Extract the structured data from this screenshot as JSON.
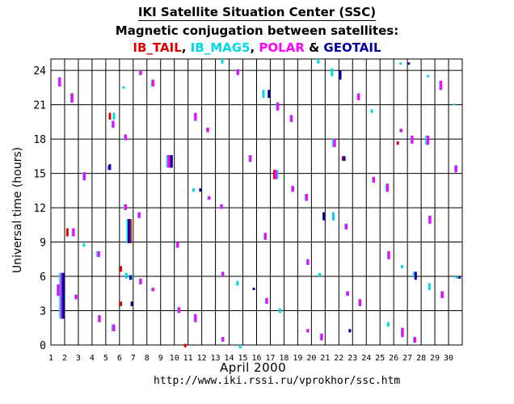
{
  "header": {
    "title": "IKI Satellite Situation Center (SSC)",
    "subtitle": "Magnetic conjugation between satellites:",
    "sats": [
      {
        "name": "IB_TAIL",
        "color": "#e00000",
        "sep": ", "
      },
      {
        "name": "IB_MAG5",
        "color": "#00d8e8",
        "sep": ", "
      },
      {
        "name": "POLAR",
        "color": "#ff00ff",
        "sep": " & "
      },
      {
        "name": "GEOTAIL",
        "color": "#0000a0",
        "sep": ""
      }
    ]
  },
  "footer": {
    "month": "April    2000",
    "url": "http://www.iki.rssi.ru/vprokhor/ssc.htm"
  },
  "chart_data": {
    "type": "scatter",
    "title": "Magnetic conjugation between satellites",
    "xlabel": "April 2000",
    "ylabel": "Universal time (hours)",
    "xlim": [
      1,
      31
    ],
    "ylim": [
      0,
      25
    ],
    "xticks": [
      "1",
      "2",
      "3",
      "4",
      "5",
      "6",
      "7",
      "8",
      "9",
      "10",
      "11",
      "12",
      "13",
      "14",
      "15",
      "16",
      "17",
      "18",
      "19",
      "20",
      "21",
      "22",
      "23",
      "24",
      "25",
      "26",
      "27",
      "28",
      "29",
      "30"
    ],
    "yticks": [
      "0",
      "3",
      "6",
      "9",
      "12",
      "15",
      "18",
      "21",
      "24"
    ],
    "grid": true,
    "legend": "top",
    "series": [
      {
        "name": "IB_TAIL",
        "color": "#e00000",
        "events": [
          [
            1.8,
            2.3,
            6.3
          ],
          [
            2.2,
            9.5,
            10.2
          ],
          [
            5.3,
            19.7,
            20.3
          ],
          [
            6.1,
            6.4,
            6.9
          ],
          [
            6.1,
            3.4,
            3.8
          ],
          [
            6.8,
            8.9,
            11.0
          ],
          [
            9.7,
            15.5,
            16.6
          ],
          [
            10.8,
            -0.2,
            0.1
          ],
          [
            17.3,
            14.5,
            15.3
          ],
          [
            21.6,
            10.9,
            11.6
          ],
          [
            22.3,
            16.1,
            16.5
          ],
          [
            26.3,
            17.5,
            17.8
          ],
          [
            28.4,
            17.5,
            18.3
          ]
        ]
      },
      {
        "name": "IB_MAG5",
        "color": "#00d8e8",
        "events": [
          [
            1.5,
            4.3,
            5.3
          ],
          [
            1.6,
            22.6,
            23.4
          ],
          [
            1.7,
            2.3,
            6.3
          ],
          [
            2.5,
            21.2,
            22.0
          ],
          [
            2.6,
            9.5,
            10.2
          ],
          [
            2.8,
            4.0,
            4.4
          ],
          [
            3.4,
            14.4,
            15.1
          ],
          [
            3.4,
            8.6,
            8.9
          ],
          [
            4.4,
            7.7,
            8.2
          ],
          [
            4.5,
            2.0,
            2.6
          ],
          [
            5.2,
            15.3,
            15.7
          ],
          [
            5.5,
            19.0,
            19.6
          ],
          [
            5.5,
            1.2,
            1.8
          ],
          [
            5.6,
            19.7,
            20.3
          ],
          [
            6.3,
            22.4,
            22.6
          ],
          [
            6.4,
            17.9,
            18.4
          ],
          [
            6.4,
            11.8,
            12.3
          ],
          [
            6.5,
            5.8,
            6.3
          ],
          [
            6.6,
            8.9,
            11.0
          ],
          [
            6.9,
            5.7,
            6.1
          ],
          [
            7.4,
            11.1,
            11.6
          ],
          [
            7.5,
            23.6,
            24.0
          ],
          [
            7.5,
            5.3,
            5.8
          ],
          [
            8.4,
            22.6,
            23.2
          ],
          [
            8.4,
            4.7,
            5.0
          ],
          [
            9.5,
            15.5,
            16.6
          ],
          [
            10.2,
            8.5,
            9.0
          ],
          [
            10.3,
            2.8,
            3.3
          ],
          [
            11.4,
            13.4,
            13.7
          ],
          [
            11.5,
            19.6,
            20.3
          ],
          [
            11.5,
            2.0,
            2.7
          ],
          [
            12.4,
            18.6,
            19.0
          ],
          [
            12.5,
            12.7,
            13.0
          ],
          [
            13.4,
            11.9,
            12.3
          ],
          [
            13.5,
            24.6,
            25.0
          ],
          [
            13.5,
            6.0,
            6.4
          ],
          [
            13.5,
            0.3,
            0.7
          ],
          [
            14.6,
            23.6,
            24.1
          ],
          [
            14.6,
            5.2,
            5.6
          ],
          [
            14.8,
            -0.3,
            0.0
          ],
          [
            15.5,
            16.0,
            16.6
          ],
          [
            16.5,
            21.6,
            22.3
          ],
          [
            16.6,
            9.2,
            9.8
          ],
          [
            16.7,
            3.6,
            4.1
          ],
          [
            17.5,
            20.5,
            21.2
          ],
          [
            17.5,
            14.5,
            15.3
          ],
          [
            17.7,
            2.8,
            3.2
          ],
          [
            18.5,
            19.5,
            20.1
          ],
          [
            18.6,
            13.4,
            13.9
          ],
          [
            19.6,
            12.6,
            13.2
          ],
          [
            19.7,
            7.0,
            7.5
          ],
          [
            19.7,
            1.1,
            1.4
          ],
          [
            20.5,
            24.6,
            25.0
          ],
          [
            20.6,
            6.0,
            6.3
          ],
          [
            20.7,
            0.4,
            1.0
          ],
          [
            21.5,
            23.5,
            24.2
          ],
          [
            21.6,
            17.3,
            18.0
          ],
          [
            21.6,
            10.9,
            11.6
          ],
          [
            22.5,
            10.1,
            10.6
          ],
          [
            22.6,
            4.3,
            4.7
          ],
          [
            23.4,
            21.4,
            22.0
          ],
          [
            23.5,
            3.4,
            4.0
          ],
          [
            24.4,
            20.3,
            20.6
          ],
          [
            24.5,
            14.2,
            14.7
          ],
          [
            25.5,
            13.4,
            14.1
          ],
          [
            25.6,
            7.5,
            8.2
          ],
          [
            25.6,
            1.6,
            2.0
          ],
          [
            26.5,
            24.5,
            24.7
          ],
          [
            26.5,
            18.6,
            18.9
          ],
          [
            26.6,
            6.7,
            7.0
          ],
          [
            26.6,
            0.7,
            1.5
          ],
          [
            27.3,
            17.6,
            18.3
          ],
          [
            27.5,
            5.9,
            6.4
          ],
          [
            27.5,
            0.2,
            0.7
          ],
          [
            28.4,
            17.5,
            18.3
          ],
          [
            28.5,
            23.4,
            23.6
          ],
          [
            28.6,
            10.6,
            11.3
          ],
          [
            28.6,
            4.8,
            5.4
          ],
          [
            29.4,
            22.3,
            23.1
          ],
          [
            29.5,
            4.1,
            4.7
          ],
          [
            30.4,
            21.0,
            21.1
          ],
          [
            30.5,
            15.1,
            15.7
          ],
          [
            30.6,
            5.8,
            6.0
          ]
        ]
      },
      {
        "name": "POLAR",
        "color": "#ff00ff",
        "events": [
          [
            1.55,
            4.3,
            5.3
          ],
          [
            1.65,
            22.6,
            23.4
          ],
          [
            1.8,
            2.3,
            6.3
          ],
          [
            2.55,
            21.2,
            22.0
          ],
          [
            2.65,
            9.5,
            10.2
          ],
          [
            2.85,
            4.0,
            4.4
          ],
          [
            3.45,
            14.4,
            15.1
          ],
          [
            4.5,
            7.7,
            8.2
          ],
          [
            4.55,
            2.0,
            2.6
          ],
          [
            5.25,
            15.3,
            15.7
          ],
          [
            5.55,
            19.0,
            19.6
          ],
          [
            5.6,
            1.2,
            1.8
          ],
          [
            6.45,
            17.9,
            18.4
          ],
          [
            6.45,
            11.8,
            12.3
          ],
          [
            6.7,
            8.9,
            11.0
          ],
          [
            7.45,
            11.1,
            11.6
          ],
          [
            7.55,
            23.6,
            24.0
          ],
          [
            7.55,
            5.3,
            5.8
          ],
          [
            8.45,
            22.6,
            23.2
          ],
          [
            8.45,
            4.7,
            5.0
          ],
          [
            9.6,
            15.5,
            16.6
          ],
          [
            10.25,
            8.5,
            9.0
          ],
          [
            10.35,
            2.8,
            3.3
          ],
          [
            11.55,
            19.6,
            20.3
          ],
          [
            11.55,
            2.0,
            2.7
          ],
          [
            12.45,
            18.6,
            19.0
          ],
          [
            12.55,
            12.7,
            13.0
          ],
          [
            13.45,
            11.9,
            12.3
          ],
          [
            13.55,
            6.0,
            6.4
          ],
          [
            13.55,
            0.3,
            0.7
          ],
          [
            14.65,
            23.6,
            24.1
          ],
          [
            15.55,
            16.0,
            16.6
          ],
          [
            16.65,
            9.2,
            9.8
          ],
          [
            16.75,
            3.6,
            4.1
          ],
          [
            17.55,
            20.5,
            21.2
          ],
          [
            17.4,
            14.5,
            15.3
          ],
          [
            18.55,
            19.5,
            20.1
          ],
          [
            18.65,
            13.4,
            13.9
          ],
          [
            19.65,
            12.6,
            13.2
          ],
          [
            19.75,
            7.0,
            7.5
          ],
          [
            19.75,
            1.1,
            1.4
          ],
          [
            20.75,
            0.4,
            1.0
          ],
          [
            21.7,
            17.3,
            18.0
          ],
          [
            22.55,
            10.1,
            10.6
          ],
          [
            22.65,
            4.3,
            4.7
          ],
          [
            23.45,
            21.4,
            22.0
          ],
          [
            23.55,
            3.4,
            4.0
          ],
          [
            24.55,
            14.2,
            14.7
          ],
          [
            25.55,
            13.4,
            14.1
          ],
          [
            25.65,
            7.5,
            8.2
          ],
          [
            26.55,
            18.6,
            18.9
          ],
          [
            26.65,
            0.7,
            1.5
          ],
          [
            27.35,
            17.6,
            18.3
          ],
          [
            27.55,
            0.2,
            0.7
          ],
          [
            28.5,
            17.5,
            18.3
          ],
          [
            28.65,
            10.6,
            11.3
          ],
          [
            29.45,
            22.3,
            23.1
          ],
          [
            29.55,
            4.1,
            4.7
          ],
          [
            30.55,
            15.1,
            15.7
          ]
        ]
      },
      {
        "name": "GEOTAIL",
        "color": "#0000a0",
        "events": [
          [
            1.9,
            2.3,
            6.3
          ],
          [
            5.3,
            15.3,
            15.8
          ],
          [
            6.7,
            8.9,
            11.0
          ],
          [
            6.8,
            5.7,
            6.1
          ],
          [
            6.9,
            3.4,
            3.8
          ],
          [
            9.8,
            15.5,
            16.6
          ],
          [
            11.9,
            13.4,
            13.7
          ],
          [
            15.8,
            4.8,
            5.0
          ],
          [
            16.9,
            21.6,
            22.3
          ],
          [
            20.9,
            10.9,
            11.6
          ],
          [
            22.1,
            23.2,
            24.0
          ],
          [
            22.4,
            16.1,
            16.5
          ],
          [
            22.8,
            1.1,
            1.4
          ],
          [
            27.1,
            24.5,
            24.7
          ],
          [
            27.6,
            5.7,
            6.4
          ],
          [
            30.8,
            5.8,
            6.0
          ]
        ]
      }
    ]
  }
}
